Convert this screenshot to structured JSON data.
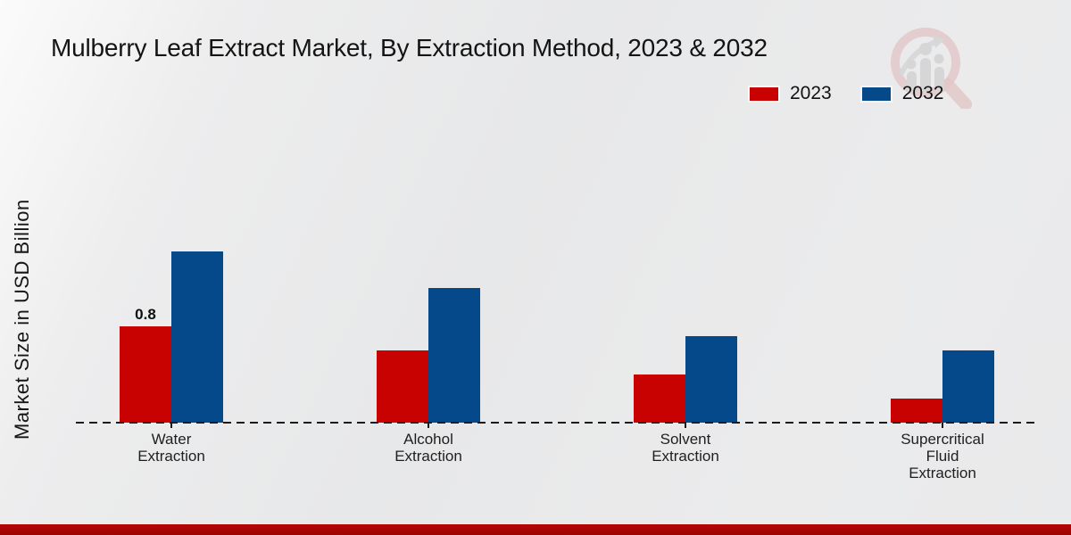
{
  "watermark": {
    "icon_name": "magnifier-growth-chart-logo"
  },
  "footer": {
    "bar_color": "#b50505"
  },
  "chart_data": {
    "type": "bar",
    "title": "Mulberry Leaf Extract Market, By Extraction Method, 2023 & 2032",
    "xlabel": "",
    "ylabel": "Market Size in USD Billion",
    "ylim": [
      0,
      1.6
    ],
    "grid": false,
    "legend_position": "top-right",
    "baseline_style": "dashed",
    "categories": [
      "Water Extraction",
      "Alcohol Extraction",
      "Solvent Extraction",
      "Supercritical Fluid Extraction"
    ],
    "categories_lines": [
      [
        "Water",
        "Extraction"
      ],
      [
        "Alcohol",
        "Extraction"
      ],
      [
        "Solvent",
        "Extraction"
      ],
      [
        "Supercritical",
        "Fluid",
        "Extraction"
      ]
    ],
    "series": [
      {
        "name": "2023",
        "color": "#c80201",
        "values": [
          0.8,
          0.6,
          0.4,
          0.2
        ],
        "value_labels": [
          "0.8",
          "",
          "",
          ""
        ]
      },
      {
        "name": "2032",
        "color": "#05498a",
        "values": [
          1.43,
          1.12,
          0.72,
          0.6
        ],
        "value_labels": [
          "",
          "",
          "",
          ""
        ]
      }
    ]
  }
}
